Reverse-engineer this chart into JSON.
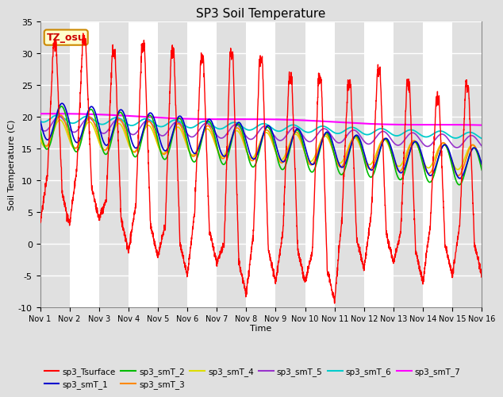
{
  "title": "SP3 Soil Temperature",
  "xlabel": "Time",
  "ylabel": "Soil Temperature (C)",
  "ylim": [
    -10,
    35
  ],
  "xlim": [
    0,
    15
  ],
  "xtick_labels": [
    "Nov 1",
    "Nov 2",
    "Nov 3",
    "Nov 4",
    "Nov 5",
    "Nov 6",
    "Nov 7",
    "Nov 8",
    "Nov 9",
    "Nov 10",
    "Nov 11",
    "Nov 12",
    "Nov 13",
    "Nov 14",
    "Nov 15",
    "Nov 16"
  ],
  "xtick_positions": [
    0,
    1,
    2,
    3,
    4,
    5,
    6,
    7,
    8,
    9,
    10,
    11,
    12,
    13,
    14,
    15
  ],
  "ytick_positions": [
    -10,
    -5,
    0,
    5,
    10,
    15,
    20,
    25,
    30,
    35
  ],
  "series_colors": {
    "sp3_Tsurface": "#FF0000",
    "sp3_smT_1": "#0000CD",
    "sp3_smT_2": "#00BB00",
    "sp3_smT_3": "#FF8800",
    "sp3_smT_4": "#DDDD00",
    "sp3_smT_5": "#9933CC",
    "sp3_smT_6": "#00CCCC",
    "sp3_smT_7": "#FF00FF"
  },
  "bg_color": "#E0E0E0",
  "white_band_color": "#F5F5F5",
  "annotation_text": "TZ_osu",
  "annotation_color": "#CC0000",
  "annotation_bg": "#FFFFCC",
  "annotation_border": "#CC8800",
  "legend_order": [
    "sp3_Tsurface",
    "sp3_smT_1",
    "sp3_smT_2",
    "sp3_smT_3",
    "sp3_smT_4",
    "sp3_smT_5",
    "sp3_smT_6",
    "sp3_smT_7"
  ]
}
